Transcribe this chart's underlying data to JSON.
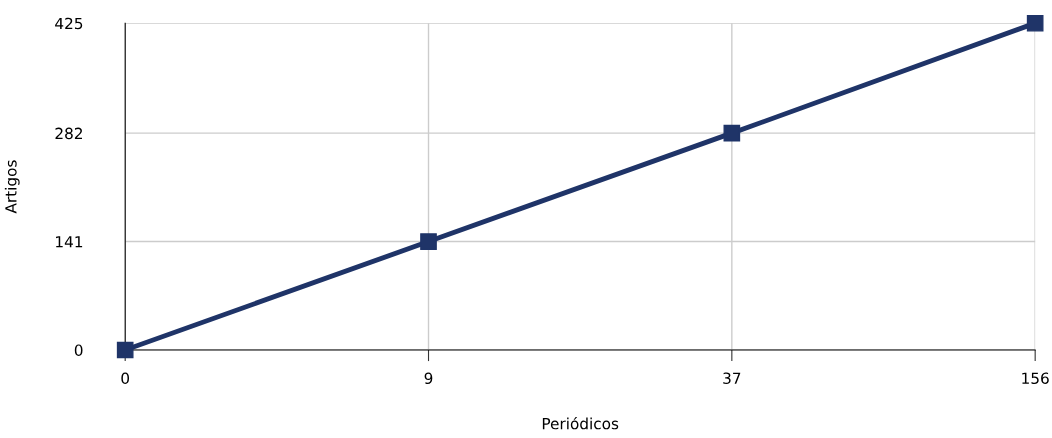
{
  "chart_data": {
    "type": "line",
    "xlabel": "Periódicos",
    "ylabel": "Artigos",
    "categories": [
      "0",
      "9",
      "37",
      "156"
    ],
    "series": [
      {
        "color": "#1f3468",
        "values": [
          0,
          141,
          282,
          425
        ]
      }
    ],
    "ylim": [
      0,
      425
    ],
    "yticks": [
      0,
      141,
      282,
      425
    ],
    "grid": true,
    "marker": "square",
    "line_style": "solid"
  }
}
